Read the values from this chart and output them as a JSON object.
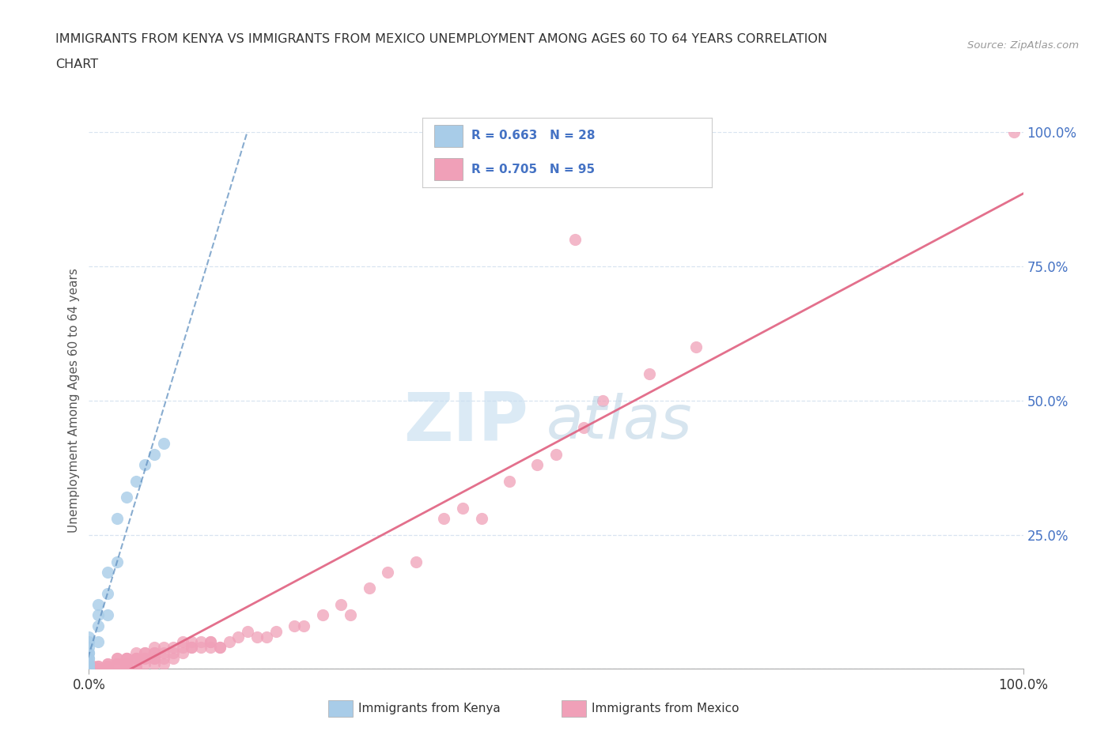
{
  "title_line1": "IMMIGRANTS FROM KENYA VS IMMIGRANTS FROM MEXICO UNEMPLOYMENT AMONG AGES 60 TO 64 YEARS CORRELATION",
  "title_line2": "CHART",
  "source": "Source: ZipAtlas.com",
  "ylabel": "Unemployment Among Ages 60 to 64 years",
  "xlim": [
    0.0,
    1.0
  ],
  "ylim": [
    0.0,
    1.0
  ],
  "kenya_R": 0.663,
  "kenya_N": 28,
  "mexico_R": 0.705,
  "mexico_N": 95,
  "kenya_color": "#a8cce8",
  "mexico_color": "#f0a0b8",
  "kenya_line_color": "#6090c0",
  "mexico_line_color": "#e06080",
  "kenya_label": "Immigrants from Kenya",
  "mexico_label": "Immigrants from Mexico",
  "background_color": "#ffffff",
  "grid_color": "#d8e4f0",
  "kenya_x": [
    0.0,
    0.0,
    0.0,
    0.0,
    0.0,
    0.0,
    0.0,
    0.0,
    0.0,
    0.0,
    0.0,
    0.0,
    0.0,
    0.0,
    0.01,
    0.01,
    0.01,
    0.01,
    0.02,
    0.02,
    0.02,
    0.03,
    0.03,
    0.04,
    0.05,
    0.06,
    0.07,
    0.08
  ],
  "kenya_y": [
    0.0,
    0.0,
    0.0,
    0.0,
    0.0,
    0.01,
    0.01,
    0.02,
    0.02,
    0.03,
    0.03,
    0.04,
    0.05,
    0.06,
    0.05,
    0.08,
    0.1,
    0.12,
    0.1,
    0.14,
    0.18,
    0.2,
    0.28,
    0.32,
    0.35,
    0.38,
    0.4,
    0.42
  ],
  "mexico_x": [
    0.0,
    0.0,
    0.0,
    0.0,
    0.0,
    0.005,
    0.005,
    0.005,
    0.005,
    0.01,
    0.01,
    0.01,
    0.01,
    0.01,
    0.01,
    0.02,
    0.02,
    0.02,
    0.02,
    0.02,
    0.03,
    0.03,
    0.03,
    0.03,
    0.03,
    0.04,
    0.04,
    0.04,
    0.04,
    0.04,
    0.04,
    0.04,
    0.05,
    0.05,
    0.05,
    0.05,
    0.05,
    0.05,
    0.06,
    0.06,
    0.06,
    0.06,
    0.06,
    0.07,
    0.07,
    0.07,
    0.07,
    0.07,
    0.07,
    0.08,
    0.08,
    0.08,
    0.08,
    0.09,
    0.09,
    0.09,
    0.1,
    0.1,
    0.1,
    0.11,
    0.11,
    0.11,
    0.12,
    0.12,
    0.13,
    0.13,
    0.13,
    0.14,
    0.14,
    0.15,
    0.16,
    0.17,
    0.18,
    0.19,
    0.2,
    0.22,
    0.23,
    0.25,
    0.27,
    0.28,
    0.3,
    0.32,
    0.35,
    0.38,
    0.4,
    0.42,
    0.45,
    0.48,
    0.5,
    0.53,
    0.55,
    0.6,
    0.65,
    0.99,
    0.52
  ],
  "mexico_y": [
    0.0,
    0.0,
    0.0,
    0.0,
    0.005,
    0.0,
    0.0,
    0.0,
    0.005,
    0.0,
    0.0,
    0.005,
    0.0,
    0.0,
    0.005,
    0.005,
    0.005,
    0.01,
    0.01,
    0.0,
    0.01,
    0.01,
    0.02,
    0.02,
    0.0,
    0.01,
    0.01,
    0.02,
    0.02,
    0.02,
    0.0,
    0.005,
    0.02,
    0.02,
    0.02,
    0.005,
    0.03,
    0.0,
    0.02,
    0.02,
    0.03,
    0.03,
    0.01,
    0.03,
    0.03,
    0.04,
    0.02,
    0.02,
    0.01,
    0.03,
    0.04,
    0.02,
    0.01,
    0.03,
    0.04,
    0.02,
    0.04,
    0.05,
    0.03,
    0.04,
    0.05,
    0.04,
    0.05,
    0.04,
    0.05,
    0.05,
    0.04,
    0.04,
    0.04,
    0.05,
    0.06,
    0.07,
    0.06,
    0.06,
    0.07,
    0.08,
    0.08,
    0.1,
    0.12,
    0.1,
    0.15,
    0.18,
    0.2,
    0.28,
    0.3,
    0.28,
    0.35,
    0.38,
    0.4,
    0.45,
    0.5,
    0.55,
    0.6,
    1.0,
    0.8
  ]
}
